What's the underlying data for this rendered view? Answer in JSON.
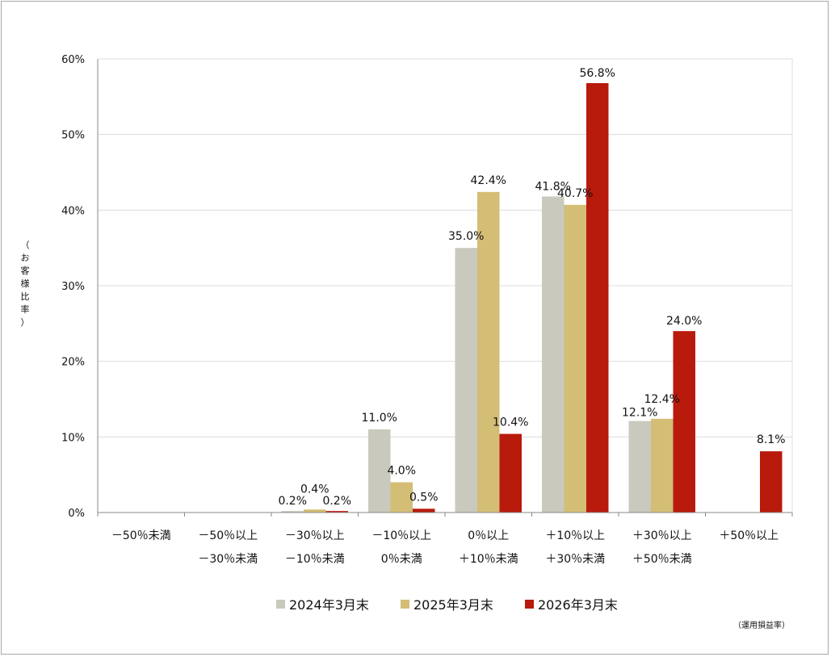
{
  "chart_data": {
    "type": "bar",
    "ylabel_chars": [
      "（",
      "お",
      "客",
      "様",
      "比",
      "率",
      "）"
    ],
    "note": "（運用損益率）",
    "ylim": [
      0,
      60
    ],
    "ytick_labels": [
      "0%",
      "10%",
      "20%",
      "30%",
      "40%",
      "50%",
      "60%"
    ],
    "grid": true,
    "legend_position": "bottom",
    "categories": [
      [
        "－50％未満"
      ],
      [
        "－50％以上",
        "－30％未満"
      ],
      [
        "－30％以上",
        "－10％未満"
      ],
      [
        "－10％以上",
        "0％未満"
      ],
      [
        "0％以上",
        "＋10％未満"
      ],
      [
        "＋10％以上",
        "＋30％未満"
      ],
      [
        "＋30％以上",
        "＋50％未満"
      ],
      [
        "＋50％以上"
      ]
    ],
    "series": [
      {
        "name": "2024年3月末",
        "color": "#c9c9bd",
        "values": [
          0,
          0,
          0.2,
          11.0,
          35.0,
          41.8,
          12.1,
          0
        ],
        "labels": [
          "",
          "",
          "0.2%",
          "11.0%",
          "35.0%",
          "41.8%",
          "12.1%",
          ""
        ]
      },
      {
        "name": "2025年3月末",
        "color": "#d4bd75",
        "values": [
          0,
          0,
          0.4,
          4.0,
          42.4,
          40.7,
          12.4,
          0
        ],
        "labels": [
          "",
          "",
          "0.4%",
          "4.0%",
          "42.4%",
          "40.7%",
          "12.4%",
          ""
        ]
      },
      {
        "name": "2026年3月末",
        "color": "#b81a0c",
        "values": [
          0,
          0,
          0.2,
          0.5,
          10.4,
          56.8,
          24.0,
          8.1
        ],
        "labels": [
          "",
          "",
          "0.2%",
          "0.5%",
          "10.4%",
          "56.8%",
          "24.0%",
          "8.1%"
        ]
      }
    ]
  }
}
